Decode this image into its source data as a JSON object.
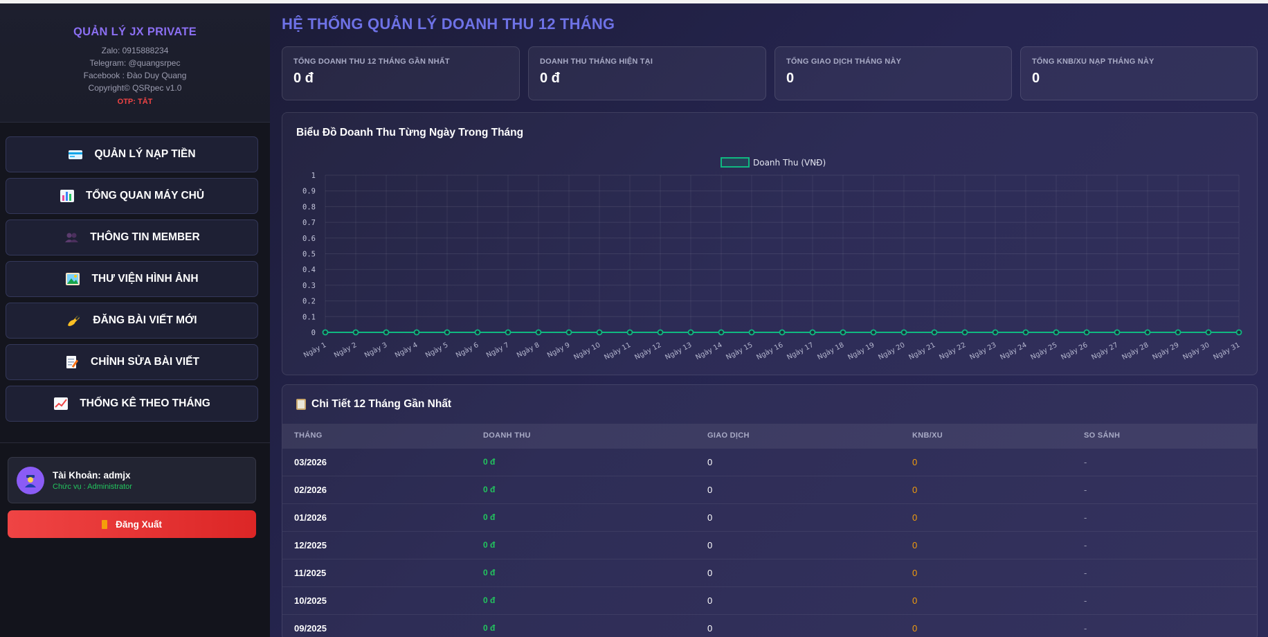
{
  "sidebar": {
    "brand": {
      "title": "QUẢN LÝ JX PRIVATE",
      "zalo": "Zalo: 0915888234",
      "telegram": "Telegram: @quangsrpec",
      "facebook": "Facebook : Đào Duy Quang",
      "copyright": "Copyright© QSRpec v1.0",
      "otp": "OTP: TẮT"
    },
    "menu": [
      {
        "label": "QUẢN LÝ NẠP TIỀN",
        "icon": "credit-card-icon"
      },
      {
        "label": "TỔNG QUAN MÁY CHỦ",
        "icon": "bar-chart-icon"
      },
      {
        "label": "THÔNG TIN MEMBER",
        "icon": "members-icon"
      },
      {
        "label": "THƯ VIỆN HÌNH ẢNH",
        "icon": "picture-icon"
      },
      {
        "label": "ĐĂNG BÀI VIẾT MỚI",
        "icon": "writing-hand-icon"
      },
      {
        "label": "CHỈNH SỬA BÀI VIẾT",
        "icon": "memo-icon"
      },
      {
        "label": "THỐNG KÊ THEO THÁNG",
        "icon": "trend-chart-icon"
      }
    ],
    "account": {
      "name": "Tài Khoản: admjx",
      "role": "Chức vụ : Administrator"
    },
    "logout_label": "Đăng Xuất"
  },
  "main": {
    "title": "HỆ THỐNG QUẢN LÝ DOANH THU 12 THÁNG",
    "stats": [
      {
        "label": "TỔNG DOANH THU 12 THÁNG GẦN NHẤT",
        "value": "0 đ"
      },
      {
        "label": "DOANH THU THÁNG HIỆN TẠI",
        "value": "0 đ"
      },
      {
        "label": "TỔNG GIAO DỊCH THÁNG NÀY",
        "value": "0"
      },
      {
        "label": "TỔNG KNB/XU NẠP THÁNG NÀY",
        "value": "0"
      }
    ],
    "chart_title": "Biểu Đồ Doanh Thu Từng Ngày Trong Tháng",
    "table": {
      "title": "Chi Tiết 12 Tháng Gần Nhất",
      "headers": [
        "THÁNG",
        "DOANH THU",
        "GIAO DỊCH",
        "KNB/XU",
        "SO SÁNH"
      ],
      "rows": [
        [
          "03/2026",
          "0 đ",
          "0",
          "0",
          "-"
        ],
        [
          "02/2026",
          "0 đ",
          "0",
          "0",
          "-"
        ],
        [
          "01/2026",
          "0 đ",
          "0",
          "0",
          "-"
        ],
        [
          "12/2025",
          "0 đ",
          "0",
          "0",
          "-"
        ],
        [
          "11/2025",
          "0 đ",
          "0",
          "0",
          "-"
        ],
        [
          "10/2025",
          "0 đ",
          "0",
          "0",
          "-"
        ],
        [
          "09/2025",
          "0 đ",
          "0",
          "0",
          "-"
        ]
      ]
    }
  },
  "colors": {
    "accent": "#6e72e6",
    "brand": "#8b6ff2",
    "series": "#10b981",
    "revenue": "#22c55e",
    "knb": "#f59e0b",
    "danger": "#ef4444"
  },
  "chart_data": {
    "type": "line",
    "title": "Biểu Đồ Doanh Thu Từng Ngày Trong Tháng",
    "x": [
      "Ngày 1",
      "Ngày 2",
      "Ngày 3",
      "Ngày 4",
      "Ngày 5",
      "Ngày 6",
      "Ngày 7",
      "Ngày 8",
      "Ngày 9",
      "Ngày 10",
      "Ngày 11",
      "Ngày 12",
      "Ngày 13",
      "Ngày 14",
      "Ngày 15",
      "Ngày 16",
      "Ngày 17",
      "Ngày 18",
      "Ngày 19",
      "Ngày 20",
      "Ngày 21",
      "Ngày 22",
      "Ngày 23",
      "Ngày 24",
      "Ngày 25",
      "Ngày 26",
      "Ngày 27",
      "Ngày 28",
      "Ngày 29",
      "Ngày 30",
      "Ngày 31"
    ],
    "series": [
      {
        "name": "Doanh Thu (VNĐ)",
        "values": [
          0,
          0,
          0,
          0,
          0,
          0,
          0,
          0,
          0,
          0,
          0,
          0,
          0,
          0,
          0,
          0,
          0,
          0,
          0,
          0,
          0,
          0,
          0,
          0,
          0,
          0,
          0,
          0,
          0,
          0,
          0
        ]
      }
    ],
    "ylim": [
      0,
      1
    ],
    "yticks": [
      "0",
      "0.1",
      "0.2",
      "0.3",
      "0.4",
      "0.5",
      "0.6",
      "0.7",
      "0.8",
      "0.9",
      "1"
    ],
    "grid": true,
    "legend": "top-center"
  }
}
